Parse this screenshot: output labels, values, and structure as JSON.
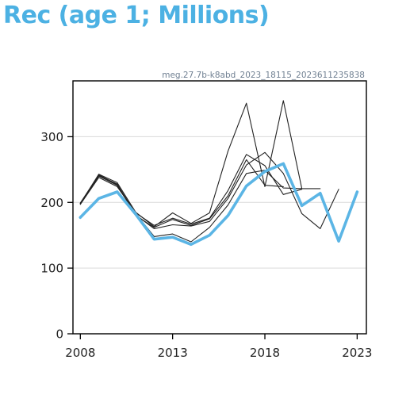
{
  "chart_data": {
    "type": "line",
    "title": "Rec (age 1; Millions)",
    "caption": "meg.27.7b-k8abd_2023_18115_2023611235838",
    "xlabel": "",
    "ylabel": "",
    "xlim": [
      2007.6,
      2023.5
    ],
    "ylim": [
      0,
      385
    ],
    "x_ticks": [
      2008,
      2013,
      2018,
      2023
    ],
    "y_ticks": [
      0,
      100,
      200,
      300
    ],
    "grid": "horizontal",
    "accent_color": "#5bb5e5",
    "series": [
      {
        "color": "#5bb5e5",
        "role": "current",
        "points": [
          [
            2008,
            177
          ],
          [
            2009,
            206
          ],
          [
            2010,
            216
          ],
          [
            2011,
            182
          ],
          [
            2012,
            144
          ],
          [
            2013,
            147
          ],
          [
            2014,
            136
          ],
          [
            2015,
            150
          ],
          [
            2016,
            180
          ],
          [
            2017,
            225
          ],
          [
            2018,
            247
          ],
          [
            2019,
            259
          ],
          [
            2020,
            195
          ],
          [
            2021,
            214
          ],
          [
            2022,
            141
          ],
          [
            2023,
            216
          ]
        ]
      },
      {
        "color": "#222222",
        "role": "previous",
        "points": [
          [
            2008,
            198
          ],
          [
            2009,
            240
          ],
          [
            2010,
            226
          ],
          [
            2011,
            181
          ],
          [
            2012,
            160
          ],
          [
            2013,
            166
          ],
          [
            2014,
            164
          ],
          [
            2015,
            171
          ],
          [
            2016,
            206
          ],
          [
            2017,
            257
          ],
          [
            2018,
            276
          ],
          [
            2019,
            244
          ],
          [
            2020,
            183
          ],
          [
            2021,
            160
          ],
          [
            2022,
            220
          ]
        ]
      },
      {
        "color": "#222222",
        "role": "previous",
        "points": [
          [
            2008,
            198
          ],
          [
            2009,
            243
          ],
          [
            2010,
            230
          ],
          [
            2011,
            185
          ],
          [
            2012,
            163
          ],
          [
            2013,
            184
          ],
          [
            2014,
            168
          ],
          [
            2015,
            184
          ],
          [
            2016,
            278
          ],
          [
            2017,
            351
          ],
          [
            2018,
            224
          ],
          [
            2019,
            355
          ],
          [
            2020,
            221
          ],
          [
            2021,
            221
          ]
        ]
      },
      {
        "color": "#222222",
        "role": "previous",
        "points": [
          [
            2008,
            199
          ],
          [
            2009,
            242
          ],
          [
            2010,
            227
          ],
          [
            2011,
            183
          ],
          [
            2012,
            148
          ],
          [
            2013,
            152
          ],
          [
            2014,
            140
          ],
          [
            2015,
            162
          ],
          [
            2016,
            196
          ],
          [
            2017,
            244
          ],
          [
            2018,
            249
          ],
          [
            2019,
            222
          ],
          [
            2020,
            221
          ]
        ]
      },
      {
        "color": "#222222",
        "role": "previous",
        "points": [
          [
            2008,
            197
          ],
          [
            2009,
            238
          ],
          [
            2010,
            224
          ],
          [
            2011,
            184
          ],
          [
            2012,
            165
          ],
          [
            2013,
            176
          ],
          [
            2014,
            167
          ],
          [
            2015,
            176
          ],
          [
            2016,
            218
          ],
          [
            2017,
            273
          ],
          [
            2018,
            256
          ],
          [
            2019,
            212
          ],
          [
            2020,
            220
          ]
        ]
      },
      {
        "color": "#222222",
        "role": "previous",
        "points": [
          [
            2008,
            199
          ],
          [
            2009,
            241
          ],
          [
            2010,
            228
          ],
          [
            2011,
            180
          ],
          [
            2012,
            162
          ],
          [
            2013,
            174
          ],
          [
            2014,
            165
          ],
          [
            2015,
            175
          ],
          [
            2016,
            210
          ],
          [
            2017,
            265
          ],
          [
            2018,
            226
          ],
          [
            2019,
            224
          ]
        ]
      }
    ]
  }
}
